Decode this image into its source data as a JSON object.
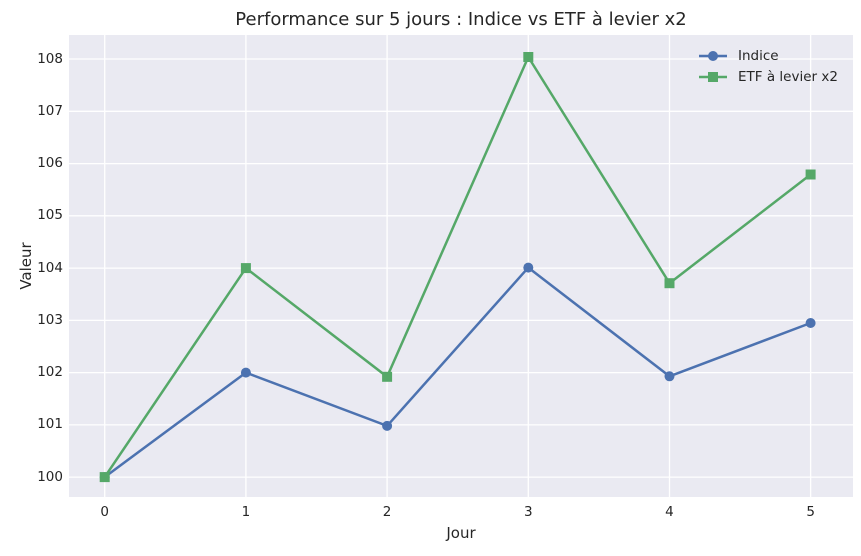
{
  "chart_data": {
    "type": "line",
    "title": "Performance sur 5 jours : Indice vs ETF à levier x2",
    "xlabel": "Jour",
    "ylabel": "Valeur",
    "x": [
      0,
      1,
      2,
      3,
      4,
      5
    ],
    "series": [
      {
        "name": "Indice",
        "color": "#4C72B0",
        "marker": "circle",
        "values": [
          100,
          102,
          100.98,
          104.01,
          101.93,
          102.95
        ]
      },
      {
        "name": "ETF à levier x2",
        "color": "#55A868",
        "marker": "square",
        "values": [
          100,
          104,
          101.92,
          108.04,
          103.71,
          105.79
        ]
      }
    ],
    "xticks": [
      "0",
      "1",
      "2",
      "3",
      "4",
      "5"
    ],
    "yticks": [
      "100",
      "101",
      "102",
      "103",
      "104",
      "105",
      "106",
      "107",
      "108"
    ],
    "xlim": [
      -0.253,
      5.3
    ],
    "ylim": [
      99.62,
      108.46
    ],
    "grid": true,
    "legend_position": "upper right",
    "plot_bg_color": "#EAEAF2",
    "grid_color": "#FFFFFF",
    "text_color": "#262626"
  }
}
